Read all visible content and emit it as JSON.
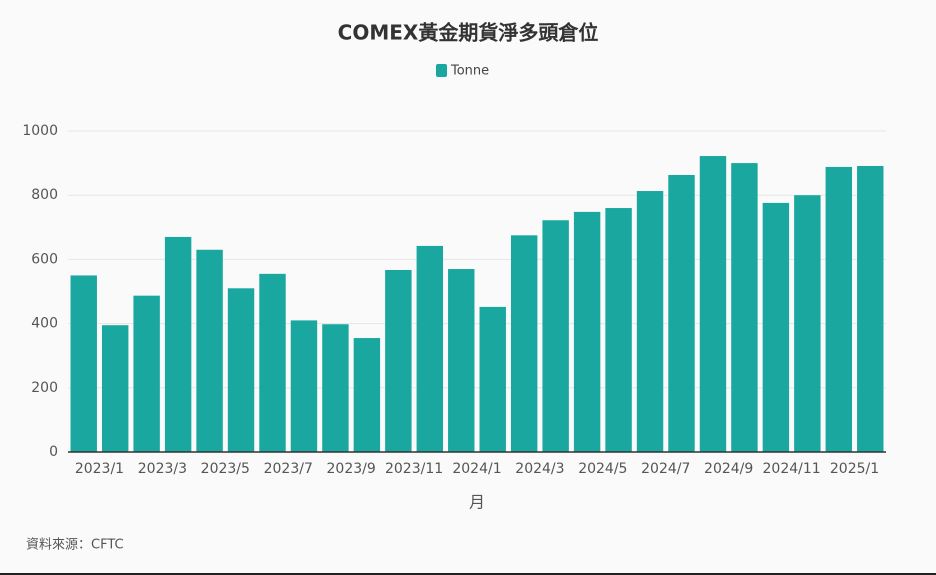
{
  "chart_data": {
    "type": "bar",
    "title": "COMEX黃金期貨淨多頭倉位",
    "categories": [
      "2023/1",
      null,
      "2023/3",
      null,
      "2023/5",
      null,
      "2023/7",
      null,
      "2023/9",
      null,
      "2023/11",
      null,
      "2024/1",
      null,
      "2024/3",
      null,
      "2024/5",
      null,
      "2024/7",
      null,
      "2024/9",
      null,
      "2024/11",
      null,
      "2025/1",
      null
    ],
    "series": [
      {
        "name": "Tonne",
        "color": "#1aa7a0",
        "values": [
          550,
          395,
          487,
          670,
          630,
          510,
          555,
          410,
          398,
          355,
          567,
          642,
          570,
          452,
          675,
          722,
          748,
          760,
          813,
          863,
          922,
          900,
          776,
          800,
          888,
          891
        ]
      }
    ],
    "x_label": "月",
    "source": "資料來源：CFTC",
    "ylim": [
      0,
      1000
    ],
    "yticks": [
      0,
      200,
      400,
      600,
      800,
      1000
    ],
    "grid": true,
    "legend": "top"
  }
}
